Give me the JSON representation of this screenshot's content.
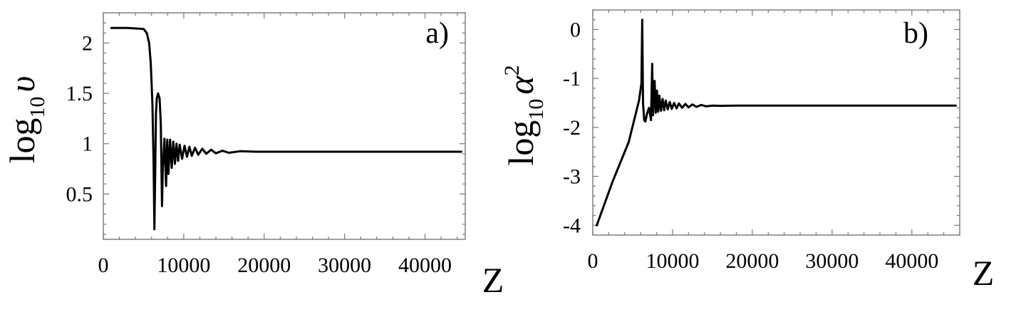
{
  "chart_data": [
    {
      "type": "line",
      "panel_label": "a)",
      "xlabel": "Z",
      "ylabel": "log10 υ",
      "ylabel_parts": {
        "prefix": "log",
        "sub": "10",
        "var": "υ",
        "sup": ""
      },
      "xlim": [
        0,
        45000
      ],
      "ylim": [
        0.05,
        2.3
      ],
      "xticks": [
        0,
        10000,
        20000,
        30000,
        40000
      ],
      "xtick_labels": [
        "0",
        "10000",
        "20000",
        "30000",
        "40000"
      ],
      "yticks": [
        0.5,
        1,
        1.5,
        2
      ],
      "ytick_labels": [
        "0.5",
        "1",
        "1.5",
        "2"
      ],
      "grid": false,
      "series": [
        {
          "x": [
            1000,
            3000,
            5000,
            5400,
            5700,
            5900,
            6100,
            6250,
            6350,
            6450,
            6550,
            6650,
            6800,
            7000,
            7150,
            7300,
            7400,
            7600,
            7800,
            7950,
            8100,
            8300,
            8500,
            8700,
            8900,
            9100,
            9300,
            9500,
            9800,
            10100,
            10400,
            10700,
            11000,
            11400,
            11800,
            12300,
            12800,
            13400,
            14000,
            14800,
            15600,
            17000,
            19000,
            25000,
            35000,
            44500
          ],
          "y": [
            2.15,
            2.15,
            2.14,
            2.1,
            2.0,
            1.8,
            1.4,
            0.8,
            0.15,
            0.7,
            1.3,
            1.45,
            1.5,
            1.45,
            1.2,
            0.38,
            0.75,
            1.05,
            0.58,
            1.04,
            0.7,
            1.04,
            0.76,
            1.02,
            0.8,
            1.0,
            0.83,
            0.99,
            0.85,
            0.98,
            0.87,
            0.97,
            0.88,
            0.96,
            0.89,
            0.95,
            0.9,
            0.94,
            0.905,
            0.93,
            0.91,
            0.925,
            0.92,
            0.92,
            0.92,
            0.92
          ]
        }
      ]
    },
    {
      "type": "line",
      "panel_label": "b)",
      "xlabel": "Z",
      "ylabel": "log10 α²",
      "ylabel_parts": {
        "prefix": "log",
        "sub": "10",
        "var": "α",
        "sup": "2"
      },
      "xlim": [
        0,
        46000
      ],
      "ylim": [
        -4.2,
        0.4
      ],
      "xticks": [
        0,
        10000,
        20000,
        30000,
        40000
      ],
      "xtick_labels": [
        "0",
        "10000",
        "20000",
        "30000",
        "40000"
      ],
      "yticks": [
        -4,
        -3,
        -2,
        -1,
        0
      ],
      "ytick_labels": [
        "-4",
        "-3",
        "-2",
        "-1",
        "0"
      ],
      "grid": false,
      "series": [
        {
          "x": [
            500,
            2500,
            4500,
            5800,
            6100,
            6200,
            6300,
            6450,
            6600,
            6800,
            7050,
            7300,
            7450,
            7550,
            7750,
            7900,
            8050,
            8200,
            8350,
            8550,
            8750,
            8950,
            9150,
            9400,
            9650,
            9900,
            10200,
            10500,
            10800,
            11200,
            11600,
            12000,
            12500,
            13000,
            13600,
            14200,
            15000,
            16000,
            18000,
            25000,
            35000,
            45500
          ],
          "y": [
            -4.0,
            -3.1,
            -2.3,
            -1.45,
            -1.1,
            0.2,
            -1.5,
            -1.85,
            -1.88,
            -1.72,
            -1.6,
            -1.85,
            -0.7,
            -1.75,
            -1.05,
            -1.7,
            -1.25,
            -1.68,
            -1.35,
            -1.66,
            -1.42,
            -1.65,
            -1.45,
            -1.63,
            -1.48,
            -1.62,
            -1.5,
            -1.61,
            -1.51,
            -1.6,
            -1.52,
            -1.59,
            -1.53,
            -1.58,
            -1.54,
            -1.57,
            -1.555,
            -1.56,
            -1.555,
            -1.555,
            -1.555,
            -1.555
          ]
        }
      ]
    }
  ]
}
